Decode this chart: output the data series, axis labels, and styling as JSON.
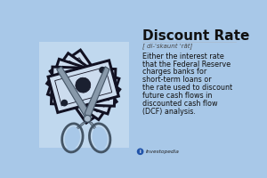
{
  "bg_color": "#a8c8e8",
  "left_bg_color": "#c0d8ee",
  "title": "Discount Rate",
  "phonetic": "[ di-ˈskaunt ˈrāt]",
  "definition_lines": [
    "Either the interest rate",
    "that the Federal Reserve",
    "charges banks for",
    "short-term loans or",
    "the rate used to discount",
    "future cash flows in",
    "discounted cash flow",
    "(DCF) analysis."
  ],
  "source": "Investopedia",
  "title_fontsize": 11,
  "phonetic_fontsize": 5.0,
  "def_fontsize": 5.8,
  "source_fontsize": 4.2,
  "bill_color": "#ccdcee",
  "bill_outline": "#111122",
  "bill_dark": "#1a2030",
  "scissors_color": "#8899aa",
  "scissors_dark": "#445566"
}
